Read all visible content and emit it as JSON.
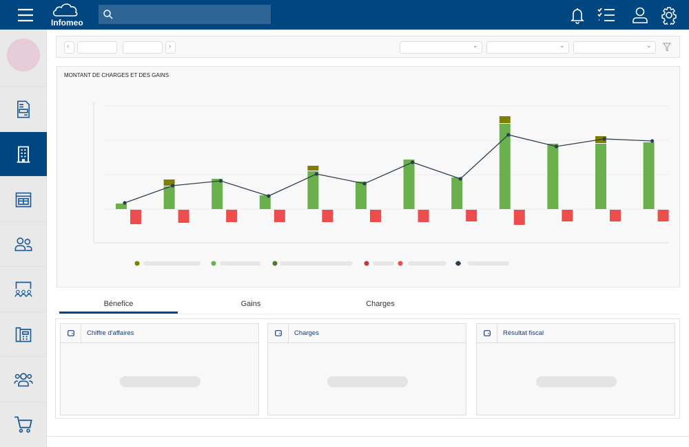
{
  "header": {
    "brand": "Infomeo",
    "search_placeholder": "",
    "icons": [
      "menu-icon",
      "search-icon",
      "bell-icon",
      "checklist-icon",
      "user-icon",
      "gear-icon"
    ]
  },
  "sidebar": {
    "active_index": 1,
    "items": [
      {
        "icon": "document-icon"
      },
      {
        "icon": "building-icon"
      },
      {
        "icon": "calendar-icon"
      },
      {
        "icon": "users-icon"
      },
      {
        "icon": "meeting-icon"
      },
      {
        "icon": "phone-icon"
      },
      {
        "icon": "team-icon"
      },
      {
        "icon": "cart-icon"
      }
    ]
  },
  "chart": {
    "title": "MONTANT DE CHARGES ET DES GAINS"
  },
  "chart_data": {
    "type": "bar",
    "title": "MONTANT DE CHARGES ET DES GAINS",
    "categories": [
      "",
      "",
      "",
      "",
      "",
      "",
      "",
      "",
      "",
      "",
      "",
      ""
    ],
    "grid": true,
    "legend": "bottom",
    "series": [
      {
        "kind": "bar-stack",
        "color": "#6ab04c",
        "values": [
          0.16,
          0.66,
          0.88,
          0.4,
          1.1,
          0.8,
          1.44,
          0.92,
          2.48,
          1.9,
          1.9,
          1.94
        ]
      },
      {
        "kind": "bar-stack",
        "color": "#808000",
        "values": [
          0,
          0.18,
          0,
          0,
          0.14,
          0,
          0,
          0,
          0.2,
          0,
          0.2,
          0
        ]
      },
      {
        "kind": "bar",
        "color": "#ee4d4d",
        "values": [
          -0.42,
          -0.38,
          -0.36,
          -0.36,
          -0.36,
          -0.36,
          -0.36,
          -0.34,
          -0.44,
          -0.34,
          -0.34,
          -0.34
        ]
      },
      {
        "kind": "line",
        "color": "#2c3e50",
        "values": [
          0.18,
          0.68,
          0.82,
          0.38,
          1.02,
          0.74,
          1.36,
          0.88,
          2.16,
          1.82,
          2.04,
          1.98
        ]
      }
    ],
    "legend_colors": [
      "#808000",
      "#6ab04c",
      "#4a7a30",
      "#c0393b",
      "#ee4d4d",
      "#2c3e50"
    ],
    "ylim": [
      -1,
      3
    ]
  },
  "tabs": [
    {
      "label": "Bénefice",
      "active": true
    },
    {
      "label": "Gains"
    },
    {
      "label": "Charges"
    }
  ],
  "cards": [
    {
      "title": "Chiffre d'affaires"
    },
    {
      "title": "Charges"
    },
    {
      "title": "Résultat fiscal"
    }
  ]
}
